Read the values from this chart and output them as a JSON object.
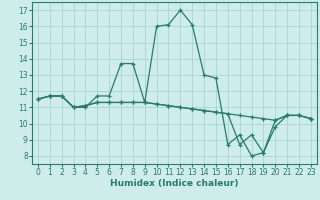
{
  "xlabel": "Humidex (Indice chaleur)",
  "bg_color": "#ceecea",
  "grid_color": "#aed8d4",
  "line_color": "#2a7a6e",
  "xlim": [
    -0.5,
    23.5
  ],
  "ylim": [
    7.5,
    17.5
  ],
  "xticks": [
    0,
    1,
    2,
    3,
    4,
    5,
    6,
    7,
    8,
    9,
    10,
    11,
    12,
    13,
    14,
    15,
    16,
    17,
    18,
    19,
    20,
    21,
    22,
    23
  ],
  "yticks": [
    8,
    9,
    10,
    11,
    12,
    13,
    14,
    15,
    16,
    17
  ],
  "lines": [
    {
      "x": [
        0,
        1,
        2,
        3,
        4,
        5,
        6,
        7,
        8,
        9,
        10,
        11,
        12,
        13,
        14,
        15,
        16,
        17,
        18,
        19,
        20,
        21,
        22,
        23
      ],
      "y": [
        11.5,
        11.7,
        11.7,
        11.0,
        11.0,
        11.7,
        11.7,
        13.7,
        13.7,
        11.3,
        16.0,
        16.1,
        17.0,
        16.1,
        13.0,
        12.8,
        8.7,
        9.3,
        8.0,
        8.2,
        9.8,
        10.5,
        10.5,
        10.3
      ]
    },
    {
      "x": [
        0,
        1,
        2,
        3,
        4,
        5,
        6,
        7,
        8,
        9,
        10,
        11,
        12,
        13,
        14,
        15,
        16,
        17,
        18,
        19,
        20,
        21,
        22,
        23
      ],
      "y": [
        11.5,
        11.7,
        11.7,
        11.0,
        11.1,
        11.3,
        11.3,
        11.3,
        11.3,
        11.3,
        11.2,
        11.1,
        11.0,
        10.9,
        10.8,
        10.7,
        10.6,
        10.5,
        10.4,
        10.3,
        10.2,
        10.5,
        10.5,
        10.3
      ]
    },
    {
      "x": [
        0,
        1,
        2,
        3,
        4,
        5,
        6,
        7,
        8,
        9,
        10,
        11,
        12,
        13,
        14,
        15,
        16,
        17,
        18,
        19,
        20,
        21,
        22,
        23
      ],
      "y": [
        11.5,
        11.7,
        11.7,
        11.0,
        11.1,
        11.3,
        11.3,
        11.3,
        11.3,
        11.3,
        11.2,
        11.1,
        11.0,
        10.9,
        10.8,
        10.7,
        10.6,
        8.7,
        9.3,
        8.2,
        10.2,
        10.5,
        10.5,
        10.3
      ]
    }
  ]
}
